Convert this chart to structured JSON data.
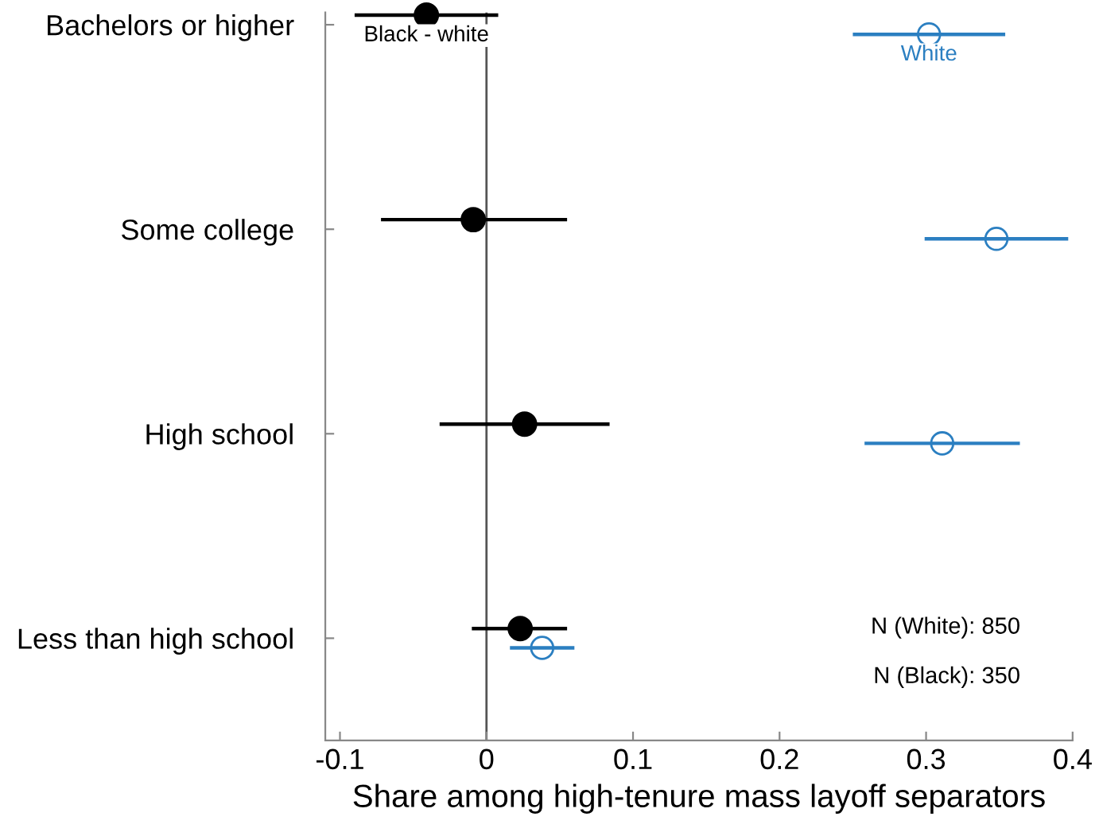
{
  "chart_data": {
    "type": "scatter",
    "orientation": "horizontal",
    "xlabel": "Share among high-tenure mass layoff separators",
    "categories": [
      "Bachelors or higher",
      "Some college",
      "High school",
      "Less than high school"
    ],
    "series": [
      {
        "name": "Black - white",
        "color": "#000000",
        "marker": "circle",
        "values": [
          -0.041,
          -0.009,
          0.026,
          0.023
        ],
        "errors": [
          [
            -0.09,
            0.008
          ],
          [
            -0.072,
            0.055
          ],
          [
            -0.032,
            0.084
          ],
          [
            -0.01,
            0.055
          ]
        ]
      },
      {
        "name": "White",
        "color": "#2b7fc1",
        "marker": "circle",
        "values": [
          0.302,
          0.348,
          0.311,
          0.038
        ],
        "errors": [
          [
            0.25,
            0.354
          ],
          [
            0.299,
            0.397
          ],
          [
            0.258,
            0.364
          ],
          [
            0.016,
            0.06
          ]
        ]
      }
    ],
    "xlim": [
      -0.11,
      0.4
    ],
    "xticks": [
      -0.1,
      0,
      0.1,
      0.2,
      0.3,
      0.4
    ],
    "ref_lines": [
      {
        "axis": "x",
        "value": 0,
        "color": "#555555"
      }
    ],
    "annotations": [
      "N (White): 850",
      "N (Black): 350"
    ],
    "grid": false,
    "legend": false
  }
}
